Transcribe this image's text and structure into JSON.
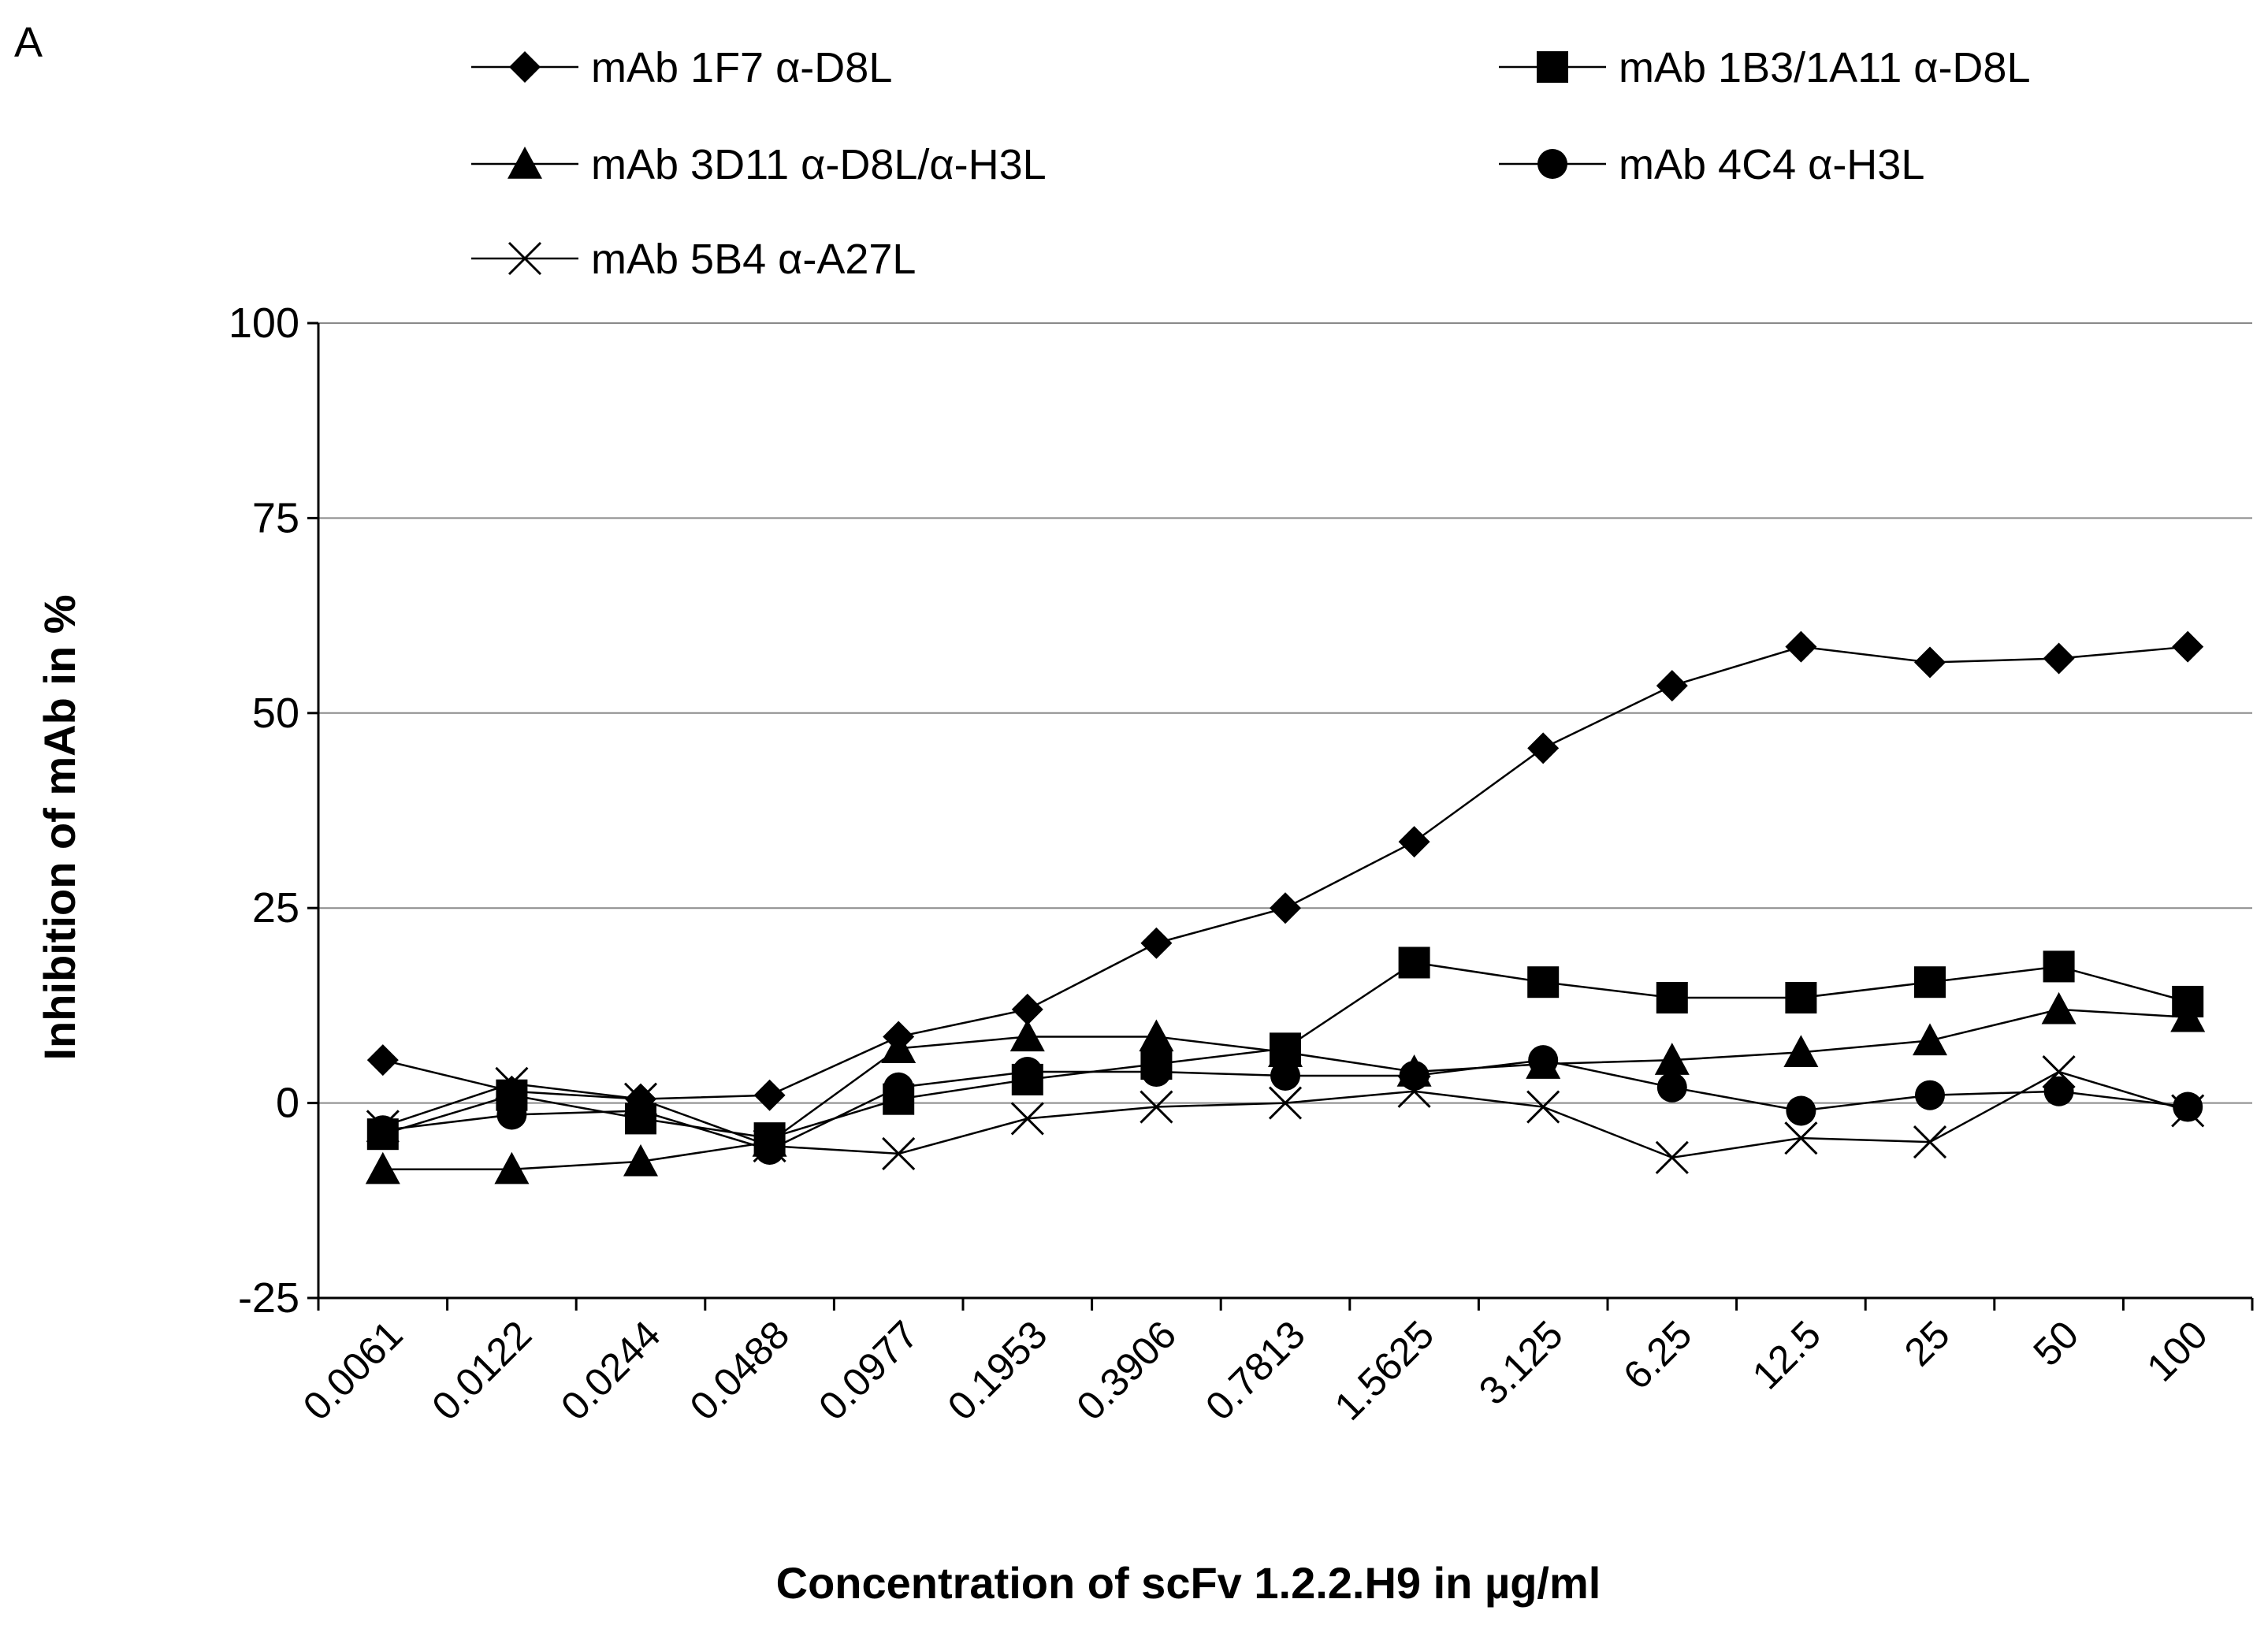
{
  "panel_label": "A",
  "chart_data": {
    "type": "line",
    "title": "",
    "xlabel": "Concentration of scFv 1.2.2.H9 in µg/ml",
    "ylabel": "Inhibition of mAb in %",
    "ylim": [
      -25,
      100
    ],
    "yticks": [
      "100",
      "75",
      "50",
      "25",
      "0",
      "-25"
    ],
    "ytick_values": [
      100,
      75,
      50,
      25,
      0,
      -25
    ],
    "grid": true,
    "legend_position": "top",
    "categories": [
      "0.0061",
      "0.0122",
      "0.0244",
      "0.0488",
      "0.0977",
      "0.1953",
      "0.3906",
      "0.7813",
      "1.5625",
      "3.125",
      "6.25",
      "12.5",
      "25",
      "50",
      "100"
    ],
    "series": [
      {
        "name": "mAb 1F7 α-D8L",
        "marker": "diamond",
        "values": [
          5.5,
          1.5,
          0.5,
          1.0,
          8.5,
          12.0,
          20.5,
          25.0,
          33.5,
          45.5,
          53.5,
          58.5,
          56.5,
          57.0,
          58.5
        ]
      },
      {
        "name": "mAb 1B3/1A11 α-D8L",
        "marker": "square",
        "values": [
          -4.0,
          1.0,
          -2.0,
          -4.5,
          0.5,
          3.0,
          5.0,
          7.0,
          18.0,
          15.5,
          13.5,
          13.5,
          15.5,
          17.5,
          13.0
        ]
      },
      {
        "name": "mAb 3D11 α-D8L/α-H3L",
        "marker": "triangle",
        "values": [
          -8.5,
          -8.5,
          -7.5,
          -5.0,
          7.0,
          8.5,
          8.5,
          6.5,
          4.0,
          5.0,
          5.5,
          6.5,
          8.0,
          12.0,
          11.0
        ]
      },
      {
        "name": "mAb 4C4 α-H3L",
        "marker": "circle",
        "values": [
          -3.5,
          -1.5,
          -1.0,
          -6.0,
          2.0,
          4.0,
          4.0,
          3.5,
          3.5,
          5.5,
          2.0,
          -1.0,
          1.0,
          1.5,
          -0.5
        ]
      },
      {
        "name": "mAb 5B4 α-A27L",
        "marker": "x",
        "values": [
          -3.0,
          2.5,
          0.5,
          -5.5,
          -6.5,
          -2.0,
          -0.5,
          0.0,
          1.5,
          -0.5,
          -7.0,
          -4.5,
          -5.0,
          4.0,
          -1.0
        ]
      }
    ]
  }
}
